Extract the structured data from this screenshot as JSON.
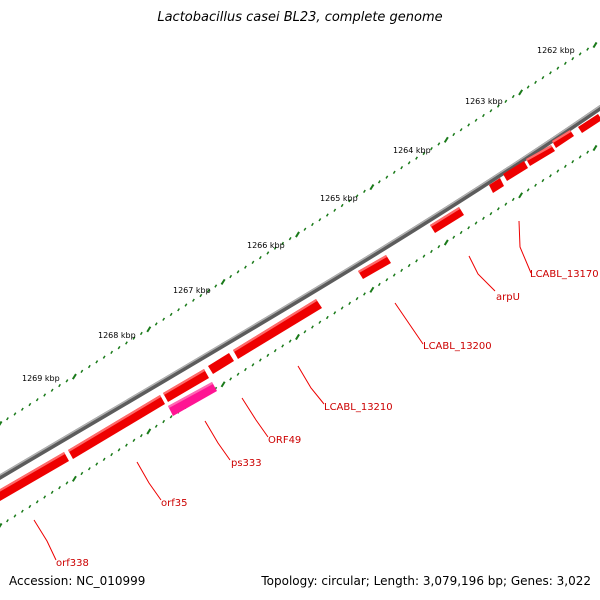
{
  "title": "Lactobacillus casei BL23, complete genome",
  "footer": {
    "accession": "Accession: NC_010999",
    "stats": "Topology: circular; Length: 3,079,196 bp; Genes: 3,022"
  },
  "ticks": [
    {
      "label": "1262 kbp",
      "kbp": 1262
    },
    {
      "label": "1263 kbp",
      "kbp": 1263
    },
    {
      "label": "1264 kbp",
      "kbp": 1264
    },
    {
      "label": "1265 kbp",
      "kbp": 1265
    },
    {
      "label": "1266 kbp",
      "kbp": 1266
    },
    {
      "label": "1267 kbp",
      "kbp": 1267
    },
    {
      "label": "1268 kbp",
      "kbp": 1268
    },
    {
      "label": "1269 kbp",
      "kbp": 1269
    }
  ],
  "gene_labels": [
    {
      "id": "lcabl-13170",
      "text": "LCABL_13170"
    },
    {
      "id": "arpu",
      "text": "arpU"
    },
    {
      "id": "lcabl-13200",
      "text": "LCABL_13200"
    },
    {
      "id": "lcabl-13210",
      "text": "LCABL_13210"
    },
    {
      "id": "orf49",
      "text": "ORF49"
    },
    {
      "id": "ps333",
      "text": "ps333"
    },
    {
      "id": "orf35",
      "text": "orf35"
    },
    {
      "id": "orf338",
      "text": "orf338"
    }
  ],
  "colors": {
    "gene": "#ee0000",
    "pseudogene": "#ff1493",
    "backbone": "#808080",
    "ticks": "#1a7a1a",
    "label_line": "#ee0000"
  }
}
